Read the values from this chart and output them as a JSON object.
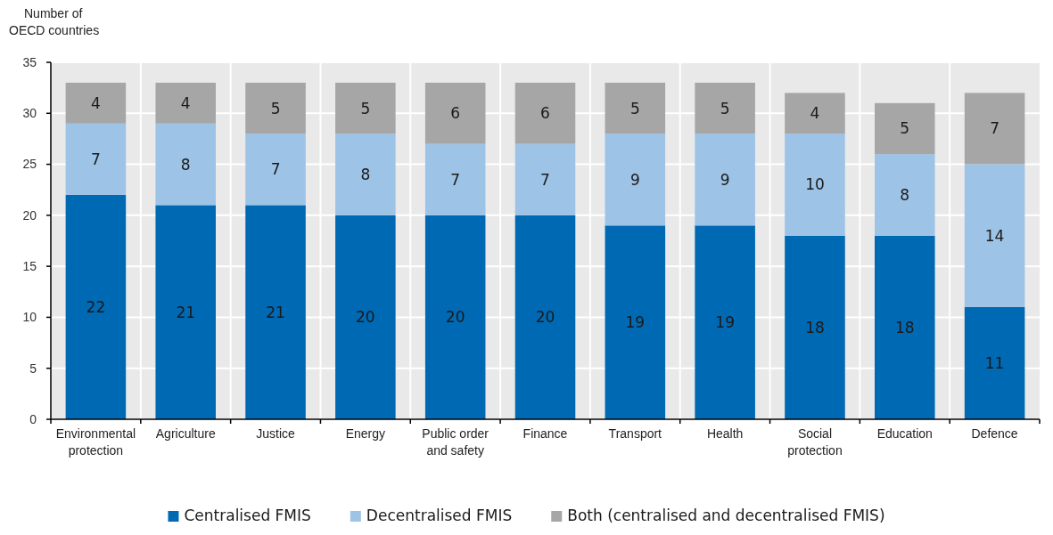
{
  "chart_data": {
    "type": "bar",
    "stacked": true,
    "ylabel": "Number of OECD countries",
    "categories": [
      "Environmental protection",
      "Agriculture",
      "Justice",
      "Energy",
      "Public order and safety",
      "Finance",
      "Transport",
      "Health",
      "Social protection",
      "Education",
      "Defence"
    ],
    "series": [
      {
        "name": "Centralised FMIS",
        "color": "#0069b4",
        "values": [
          22,
          21,
          21,
          20,
          20,
          20,
          19,
          19,
          18,
          18,
          11
        ]
      },
      {
        "name": "Decentralised FMIS",
        "color": "#9dc3e6",
        "values": [
          7,
          8,
          7,
          8,
          7,
          7,
          9,
          9,
          10,
          8,
          14
        ]
      },
      {
        "name": "Both (centralised and decentralised FMIS)",
        "color": "#a6a6a6",
        "values": [
          4,
          4,
          5,
          5,
          6,
          6,
          5,
          5,
          4,
          5,
          7
        ]
      }
    ],
    "ylim": [
      0,
      35
    ],
    "yticks": [
      0,
      5,
      10,
      15,
      20,
      25,
      30,
      35
    ],
    "grid": true,
    "legend": "bottom",
    "data_labels": true
  }
}
